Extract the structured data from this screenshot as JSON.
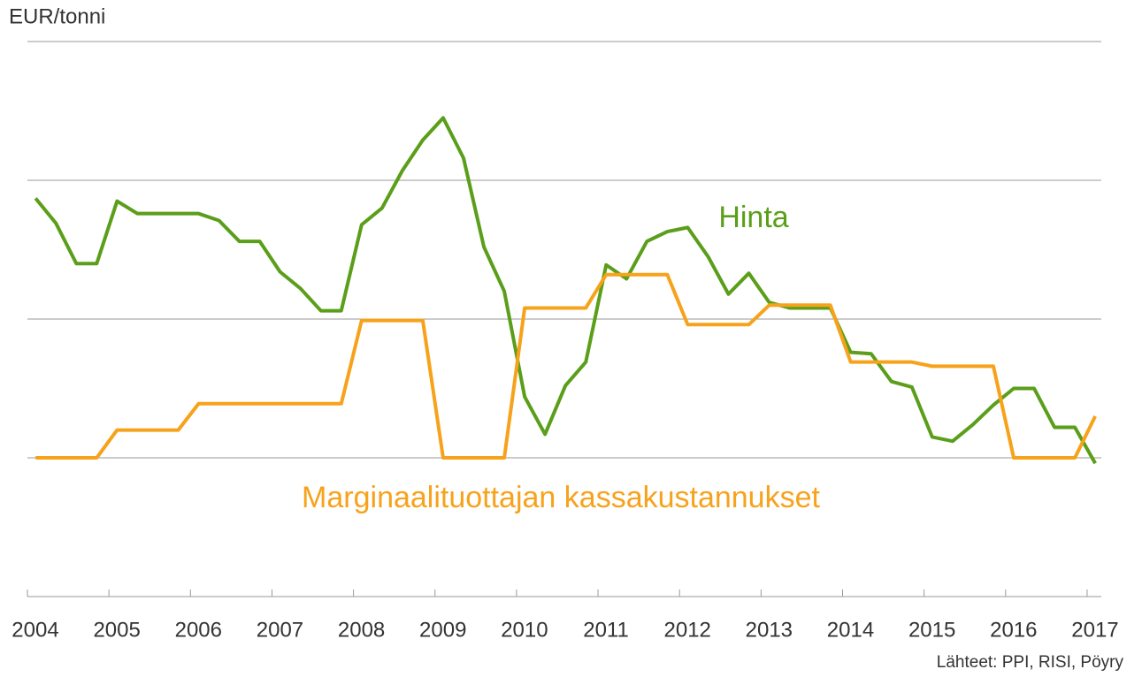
{
  "chart_data": {
    "type": "line",
    "y_label": "EUR/tonni",
    "x": [
      2004.1,
      2004.35,
      2004.6,
      2004.85,
      2005.1,
      2005.35,
      2005.6,
      2005.85,
      2006.1,
      2006.35,
      2006.6,
      2006.85,
      2007.1,
      2007.35,
      2007.6,
      2007.85,
      2008.1,
      2008.35,
      2008.6,
      2008.85,
      2009.1,
      2009.35,
      2009.6,
      2009.85,
      2010.1,
      2010.35,
      2010.6,
      2010.85,
      2011.1,
      2011.35,
      2011.6,
      2011.85,
      2012.1,
      2012.35,
      2012.6,
      2012.85,
      2013.1,
      2013.35,
      2013.6,
      2013.85,
      2014.1,
      2014.35,
      2014.6,
      2014.85,
      2015.1,
      2015.35,
      2015.6,
      2015.85,
      2016.1,
      2016.35,
      2016.6,
      2016.85,
      2017.1
    ],
    "series": [
      {
        "name": "Hinta",
        "color": "#5a9e1a",
        "values": [
          2.87,
          2.69,
          2.4,
          2.4,
          2.85,
          2.76,
          2.76,
          2.76,
          2.76,
          2.71,
          2.56,
          2.56,
          2.34,
          2.22,
          2.06,
          2.06,
          2.68,
          2.8,
          3.07,
          3.29,
          3.45,
          3.16,
          2.52,
          2.2,
          1.44,
          1.17,
          1.52,
          1.69,
          2.39,
          2.29,
          2.56,
          2.63,
          2.66,
          2.45,
          2.18,
          2.33,
          2.12,
          2.08,
          2.08,
          2.08,
          1.76,
          1.75,
          1.55,
          1.51,
          1.15,
          1.12,
          1.24,
          1.38,
          1.5,
          1.5,
          1.22,
          1.22,
          0.96
        ]
      },
      {
        "name": "Marginaalituottajan kassakustannukset",
        "color": "#f7a21b",
        "values": [
          1.0,
          1.0,
          1.0,
          1.0,
          1.2,
          1.2,
          1.2,
          1.2,
          1.39,
          1.39,
          1.39,
          1.39,
          1.39,
          1.39,
          1.39,
          1.39,
          1.99,
          1.99,
          1.99,
          1.99,
          1.0,
          1.0,
          1.0,
          1.0,
          2.08,
          2.08,
          2.08,
          2.08,
          2.32,
          2.32,
          2.32,
          2.32,
          1.96,
          1.96,
          1.96,
          1.96,
          2.1,
          2.1,
          2.1,
          2.1,
          1.69,
          1.69,
          1.69,
          1.69,
          1.66,
          1.66,
          1.66,
          1.66,
          1.0,
          1.0,
          1.0,
          1.0,
          1.3
        ]
      }
    ],
    "xlim": [
      2004,
      2017.2
    ],
    "xticks": [
      2004,
      2005,
      2006,
      2007,
      2008,
      2009,
      2010,
      2011,
      2012,
      2013,
      2014,
      2015,
      2016,
      2017
    ],
    "ylim": [
      0,
      4
    ],
    "yticks": [
      1,
      2,
      3,
      4
    ],
    "grid": true,
    "source": "Lähteet: PPI, RISI, Pöyry"
  }
}
